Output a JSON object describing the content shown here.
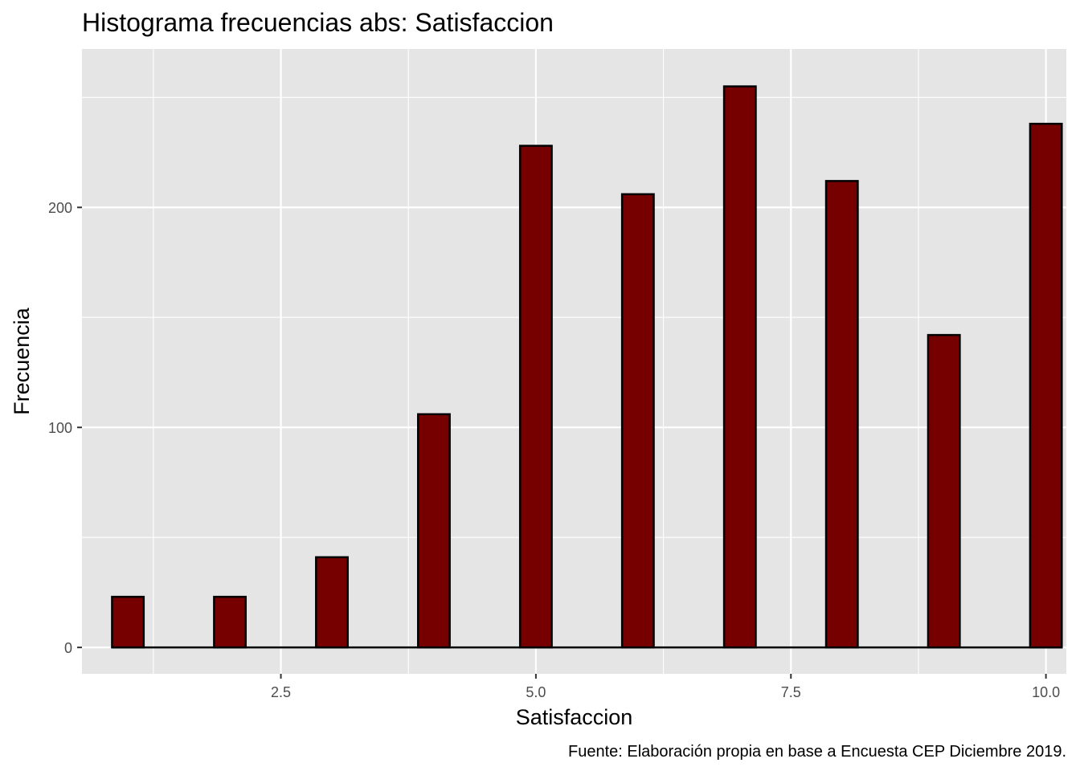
{
  "chart_data": {
    "type": "bar",
    "title": "Histograma frecuencias abs: Satisfaccion",
    "xlabel": "Satisfaccion",
    "ylabel": "Frecuencia",
    "caption": "Fuente: Elaboración propia en base a Encuesta CEP Diciembre 2019.",
    "bin_width": 0.3103,
    "x": [
      1,
      2,
      3,
      4,
      5,
      6,
      7,
      8,
      9,
      10
    ],
    "values": [
      23,
      23,
      41,
      106,
      228,
      206,
      255,
      212,
      142,
      238
    ],
    "xlim": [
      0.55,
      10.2
    ],
    "ylim": [
      -12,
      272
    ],
    "x_ticks": [
      2.5,
      5.0,
      7.5,
      10.0
    ],
    "x_tick_labels": [
      "2.5",
      "5.0",
      "7.5",
      "10.0"
    ],
    "y_ticks": [
      0,
      100,
      200
    ],
    "y_tick_labels": [
      "0",
      "100",
      "200"
    ],
    "grid": true,
    "colors": {
      "bar_fill": "#760000",
      "bar_outline": "#000000",
      "panel_background": "#e5e5e5",
      "grid_line": "#ffffff"
    }
  }
}
